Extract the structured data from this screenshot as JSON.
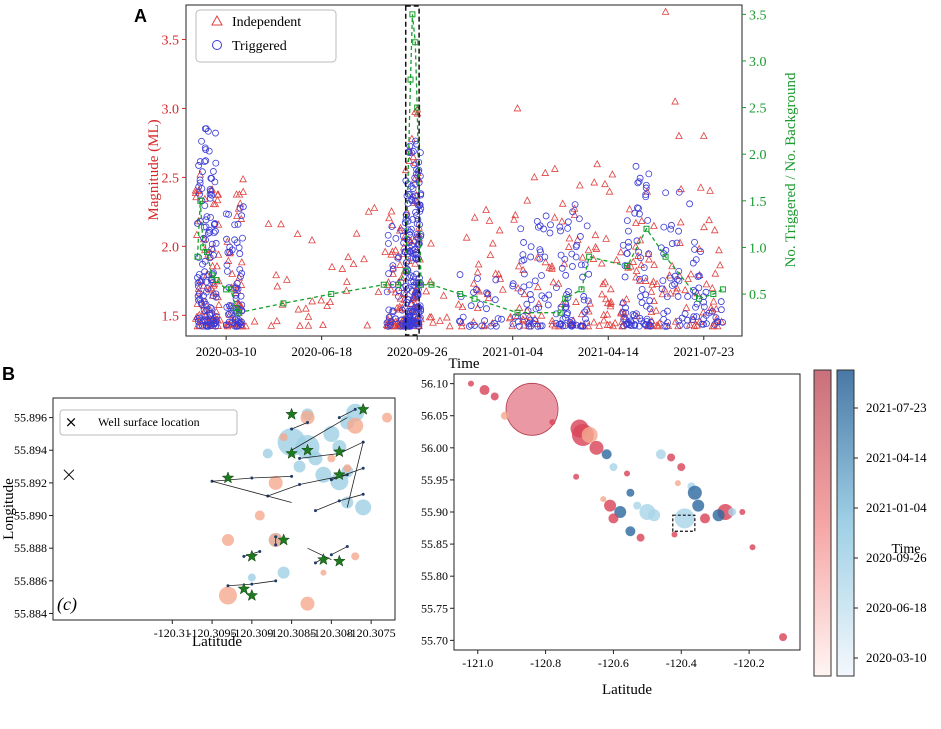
{
  "colors": {
    "independent": "#e0403f",
    "triggered": "#3b3bd6",
    "ratio": "#14a02a",
    "axis_left": "#d62728",
    "axis_right": "#1a9a2e",
    "late": "#2e6a9e",
    "mid": "#a8d4e6",
    "early": "#f2a58a",
    "red": "#d9455a"
  },
  "chart_data": [
    {
      "panel": "A",
      "type": "scatter",
      "xlabel": "Time",
      "ylabel": "Magnitude (ML)",
      "y2label": "No. Triggered / No. Background",
      "xticks": [
        "2020-03-10",
        "2020-06-18",
        "2020-09-26",
        "2021-01-04",
        "2021-04-14",
        "2021-07-23"
      ],
      "xlim": [
        -42,
        540
      ],
      "ylim": [
        1.35,
        3.75
      ],
      "yticks": [
        "1.5",
        "2.0",
        "2.5",
        "3.0",
        "3.5"
      ],
      "y2lim": [
        0.05,
        3.6
      ],
      "y2ticks": [
        "0.5",
        "1.0",
        "1.5",
        "2.0",
        "2.5",
        "3.0",
        "3.5"
      ],
      "legend": {
        "position": "top-left",
        "entries": [
          "Independent",
          "Triggered"
        ]
      },
      "highlight_window": [
        188,
        202
      ],
      "ratio_series": {
        "name": "No. Triggered / No. Background",
        "x": [
          -30,
          -27,
          -24,
          -20,
          -15,
          -10,
          0,
          5,
          10,
          13,
          60,
          110,
          165,
          180,
          188,
          193,
          195,
          198,
          200,
          204,
          215,
          245,
          260,
          305,
          350,
          355,
          372,
          380,
          420,
          440,
          460,
          495,
          510,
          520
        ],
        "y": [
          0.9,
          1.5,
          1.0,
          0.95,
          0.7,
          0.65,
          0.55,
          0.55,
          0.35,
          0.3,
          0.4,
          0.5,
          0.6,
          0.6,
          0.75,
          2.8,
          3.5,
          3.2,
          2.5,
          0.6,
          0.6,
          0.5,
          0.45,
          0.3,
          0.3,
          0.45,
          0.55,
          0.9,
          0.8,
          1.2,
          0.9,
          0.45,
          0.5,
          0.55
        ]
      },
      "independent_clusters": [
        {
          "x": [
            -32,
            -6
          ],
          "ymax": 2.6,
          "n": 70
        },
        {
          "x": [
            0,
            18
          ],
          "ymax": 2.5,
          "n": 40
        },
        {
          "x": [
            20,
            180
          ],
          "ymax": 2.3,
          "n": 40
        },
        {
          "x": [
            168,
            188
          ],
          "ymax": 2.3,
          "n": 50
        },
        {
          "x": [
            188,
            204
          ],
          "ymax": 3.1,
          "n": 60
        },
        {
          "x": [
            205,
            300
          ],
          "ymax": 2.3,
          "n": 40
        },
        {
          "x": [
            300,
            395
          ],
          "ymax": 2.6,
          "n": 70
        },
        {
          "x": [
            395,
            445
          ],
          "ymax": 2.6,
          "n": 50
        },
        {
          "x": [
            445,
            520
          ],
          "ymax": 2.5,
          "n": 60
        }
      ],
      "triggered_clusters": [
        {
          "x": [
            -30,
            -10
          ],
          "ymax": 2.9,
          "n": 120
        },
        {
          "x": [
            0,
            18
          ],
          "ymax": 2.3,
          "n": 60
        },
        {
          "x": [
            168,
            188
          ],
          "ymax": 2.2,
          "n": 40
        },
        {
          "x": [
            188,
            204
          ],
          "ymax": 2.8,
          "n": 170
        },
        {
          "x": [
            240,
            290
          ],
          "ymax": 1.85,
          "n": 25
        },
        {
          "x": [
            300,
            340
          ],
          "ymax": 2.3,
          "n": 50
        },
        {
          "x": [
            345,
            380
          ],
          "ymax": 2.35,
          "n": 60
        },
        {
          "x": [
            415,
            445
          ],
          "ymax": 2.6,
          "n": 70
        },
        {
          "x": [
            455,
            520
          ],
          "ymax": 2.4,
          "n": 70
        }
      ],
      "outliers_independent": [
        {
          "x": 460,
          "y": 3.7
        },
        {
          "x": 470,
          "y": 3.05
        },
        {
          "x": 305,
          "y": 3.0
        },
        {
          "x": 474,
          "y": 2.8
        },
        {
          "x": 500,
          "y": 2.8
        }
      ]
    },
    {
      "panel": "B-left",
      "type": "scatter",
      "xlabel": "Latitude",
      "ylabel": "Longitude",
      "xlim": [
        -120.3115,
        -120.3072
      ],
      "ylim": [
        55.8836,
        55.8972
      ],
      "xticks": [
        "-120.31",
        "-120.3095",
        "-120.309",
        "-120.3085",
        "-120.308",
        "-120.3075"
      ],
      "yticks": [
        "55.884",
        "55.886",
        "55.888",
        "55.890",
        "55.892",
        "55.894",
        "55.896"
      ],
      "legend": {
        "position": "top-left",
        "entries": [
          "Well surface location"
        ]
      },
      "panel_label": "(c)",
      "well_surface_location": {
        "x": -120.3113,
        "y": 55.8925
      },
      "wells": [
        [
          [
            -120.3095,
            55.8921
          ],
          [
            -120.309,
            55.8923
          ],
          [
            -120.3085,
            55.8924
          ]
        ],
        [
          [
            -120.308,
            55.8922
          ],
          [
            -120.3078,
            55.8925
          ]
        ],
        [
          [
            -120.3084,
            55.8935
          ],
          [
            -120.3079,
            55.8938
          ],
          [
            -120.3076,
            55.8945
          ]
        ],
        [
          [
            -120.3085,
            55.8953
          ],
          [
            -120.3083,
            55.8957
          ]
        ],
        [
          [
            -120.3079,
            55.896
          ],
          [
            -120.3077,
            55.8965
          ]
        ],
        [
          [
            -120.3088,
            55.8912
          ],
          [
            -120.3084,
            55.8919
          ],
          [
            -120.3079,
            55.8924
          ]
        ],
        [
          [
            -120.308,
            55.8922
          ],
          [
            -120.3076,
            55.8929
          ]
        ],
        [
          [
            -120.3082,
            55.8903
          ],
          [
            -120.3079,
            55.8909
          ],
          [
            -120.3076,
            55.8913
          ]
        ],
        [
          [
            -120.3087,
            55.8887
          ],
          [
            -120.3087,
            55.8882
          ]
        ],
        [
          [
            -120.3091,
            55.8875
          ],
          [
            -120.3089,
            55.8878
          ]
        ],
        [
          [
            -120.308,
            55.8876
          ],
          [
            -120.3078,
            55.8881
          ]
        ],
        [
          [
            -120.3093,
            55.8857
          ],
          [
            -120.309,
            55.8858
          ],
          [
            -120.3087,
            55.886
          ]
        ],
        [
          [
            -120.3082,
            55.8871
          ],
          [
            -120.3081,
            55.8874
          ]
        ]
      ],
      "stars": [
        [
          -120.3093,
          55.8923
        ],
        [
          -120.3085,
          55.8962
        ],
        [
          -120.3083,
          55.894
        ],
        [
          -120.3076,
          55.8965
        ],
        [
          -120.3079,
          55.8939
        ],
        [
          -120.3079,
          55.8925
        ],
        [
          -120.3086,
          55.8885
        ],
        [
          -120.309,
          55.8875
        ],
        [
          -120.3081,
          55.8873
        ],
        [
          -120.3079,
          55.8872
        ],
        [
          -120.3091,
          55.8855
        ],
        [
          -120.309,
          55.8851
        ],
        [
          -120.3085,
          55.8938
        ]
      ],
      "events": [
        {
          "x": -120.3085,
          "y": 55.8945,
          "r": 14,
          "c": "mid"
        },
        {
          "x": -120.3083,
          "y": 55.8942,
          "r": 12,
          "c": "mid"
        },
        {
          "x": -120.308,
          "y": 55.895,
          "r": 8,
          "c": "mid"
        },
        {
          "x": -120.3077,
          "y": 55.8963,
          "r": 9,
          "c": "mid"
        },
        {
          "x": -120.3083,
          "y": 55.8962,
          "r": 6,
          "c": "mid"
        },
        {
          "x": -120.3078,
          "y": 55.8957,
          "r": 7,
          "c": "mid"
        },
        {
          "x": -120.3081,
          "y": 55.8925,
          "r": 8,
          "c": "mid"
        },
        {
          "x": -120.3079,
          "y": 55.8921,
          "r": 9,
          "c": "mid"
        },
        {
          "x": -120.3078,
          "y": 55.8927,
          "r": 6,
          "c": "mid"
        },
        {
          "x": -120.3082,
          "y": 55.8935,
          "r": 7,
          "c": "mid"
        },
        {
          "x": -120.3076,
          "y": 55.8905,
          "r": 8,
          "c": "mid"
        },
        {
          "x": -120.3078,
          "y": 55.8908,
          "r": 6,
          "c": "mid"
        },
        {
          "x": -120.3087,
          "y": 55.8885,
          "r": 7,
          "c": "mid"
        },
        {
          "x": -120.3084,
          "y": 55.893,
          "r": 6,
          "c": "mid"
        },
        {
          "x": -120.3079,
          "y": 55.8942,
          "r": 7,
          "c": "mid"
        },
        {
          "x": -120.3088,
          "y": 55.8938,
          "r": 5,
          "c": "mid"
        },
        {
          "x": -120.3086,
          "y": 55.8865,
          "r": 6,
          "c": "mid"
        },
        {
          "x": -120.309,
          "y": 55.8862,
          "r": 4,
          "c": "mid"
        },
        {
          "x": -120.3087,
          "y": 55.892,
          "r": 7,
          "c": "early"
        },
        {
          "x": -120.3077,
          "y": 55.8955,
          "r": 8,
          "c": "early"
        },
        {
          "x": -120.3083,
          "y": 55.896,
          "r": 7,
          "c": "early"
        },
        {
          "x": -120.3073,
          "y": 55.896,
          "r": 5,
          "c": "early"
        },
        {
          "x": -120.3089,
          "y": 55.89,
          "r": 5,
          "c": "early"
        },
        {
          "x": -120.3093,
          "y": 55.8885,
          "r": 6,
          "c": "early"
        },
        {
          "x": -120.3093,
          "y": 55.8851,
          "r": 9,
          "c": "early"
        },
        {
          "x": -120.3083,
          "y": 55.8846,
          "r": 7,
          "c": "early"
        },
        {
          "x": -120.3087,
          "y": 55.8885,
          "r": 7,
          "c": "early"
        },
        {
          "x": -120.3081,
          "y": 55.8865,
          "r": 3,
          "c": "early"
        },
        {
          "x": -120.3078,
          "y": 55.8929,
          "r": 4,
          "c": "early"
        },
        {
          "x": -120.3077,
          "y": 55.8875,
          "r": 4,
          "c": "early"
        },
        {
          "x": -120.3086,
          "y": 55.8948,
          "r": 4,
          "c": "early"
        },
        {
          "x": -120.308,
          "y": 55.8935,
          "r": 4,
          "c": "early"
        }
      ]
    },
    {
      "panel": "B-right",
      "type": "scatter",
      "xlabel": "Latitude",
      "xlim": [
        -121.07,
        -120.05
      ],
      "ylim": [
        55.685,
        56.115
      ],
      "xticks": [
        "-121.0",
        "-120.8",
        "-120.6",
        "-120.4",
        "-120.2"
      ],
      "yticks": [
        "55.70",
        "55.75",
        "55.80",
        "55.85",
        "55.90",
        "55.95",
        "56.00",
        "56.05",
        "56.10"
      ],
      "colorbar_label": "Time",
      "colorbar_ticks": [
        "2021-07-23",
        "2021-04-14",
        "2021-01-04",
        "2020-09-26",
        "2020-06-18",
        "2020-03-10"
      ],
      "highlight_box": {
        "x": [
          -120.425,
          -120.36
        ],
        "y": [
          55.87,
          55.895
        ]
      },
      "events": [
        {
          "x": -120.84,
          "y": 56.06,
          "r": 26,
          "c": "red"
        },
        {
          "x": -120.7,
          "y": 56.03,
          "r": 9,
          "c": "red"
        },
        {
          "x": -120.69,
          "y": 56.02,
          "r": 11,
          "c": "red"
        },
        {
          "x": -120.67,
          "y": 56.02,
          "r": 8,
          "c": "early"
        },
        {
          "x": -120.65,
          "y": 56.0,
          "r": 7,
          "c": "red"
        },
        {
          "x": -120.98,
          "y": 56.09,
          "r": 5,
          "c": "red"
        },
        {
          "x": -120.95,
          "y": 56.08,
          "r": 4,
          "c": "red"
        },
        {
          "x": -121.02,
          "y": 56.1,
          "r": 3,
          "c": "red"
        },
        {
          "x": -120.92,
          "y": 56.05,
          "r": 4,
          "c": "early"
        },
        {
          "x": -120.78,
          "y": 56.04,
          "r": 3,
          "c": "red"
        },
        {
          "x": -120.62,
          "y": 55.99,
          "r": 5,
          "c": "late"
        },
        {
          "x": -120.6,
          "y": 55.97,
          "r": 4,
          "c": "mid"
        },
        {
          "x": -120.55,
          "y": 55.93,
          "r": 4,
          "c": "late"
        },
        {
          "x": -120.53,
          "y": 55.91,
          "r": 4,
          "c": "mid"
        },
        {
          "x": -120.61,
          "y": 55.91,
          "r": 6,
          "c": "red"
        },
        {
          "x": -120.58,
          "y": 55.9,
          "r": 6,
          "c": "late"
        },
        {
          "x": -120.6,
          "y": 55.89,
          "r": 5,
          "c": "red"
        },
        {
          "x": -120.5,
          "y": 55.9,
          "r": 8,
          "c": "mid"
        },
        {
          "x": -120.48,
          "y": 55.895,
          "r": 6,
          "c": "mid"
        },
        {
          "x": -120.46,
          "y": 55.99,
          "r": 5,
          "c": "mid"
        },
        {
          "x": -120.43,
          "y": 55.985,
          "r": 4,
          "c": "red"
        },
        {
          "x": -120.4,
          "y": 55.97,
          "r": 4,
          "c": "red"
        },
        {
          "x": -120.37,
          "y": 55.94,
          "r": 4,
          "c": "mid"
        },
        {
          "x": -120.36,
          "y": 55.93,
          "r": 7,
          "c": "late"
        },
        {
          "x": -120.35,
          "y": 55.91,
          "r": 6,
          "c": "late"
        },
        {
          "x": -120.39,
          "y": 55.89,
          "r": 10,
          "c": "mid"
        },
        {
          "x": -120.33,
          "y": 55.89,
          "r": 5,
          "c": "red"
        },
        {
          "x": -120.27,
          "y": 55.9,
          "r": 8,
          "c": "red"
        },
        {
          "x": -120.29,
          "y": 55.895,
          "r": 6,
          "c": "late"
        },
        {
          "x": -120.25,
          "y": 55.9,
          "r": 4,
          "c": "mid"
        },
        {
          "x": -120.22,
          "y": 55.9,
          "r": 3,
          "c": "red"
        },
        {
          "x": -120.55,
          "y": 55.87,
          "r": 5,
          "c": "late"
        },
        {
          "x": -120.52,
          "y": 55.86,
          "r": 4,
          "c": "red"
        },
        {
          "x": -120.42,
          "y": 55.865,
          "r": 3,
          "c": "red"
        },
        {
          "x": -120.19,
          "y": 55.845,
          "r": 3,
          "c": "red"
        },
        {
          "x": -120.1,
          "y": 55.705,
          "r": 4,
          "c": "red"
        },
        {
          "x": -120.71,
          "y": 55.955,
          "r": 3,
          "c": "red"
        },
        {
          "x": -120.56,
          "y": 55.96,
          "r": 3,
          "c": "red"
        },
        {
          "x": -120.63,
          "y": 55.92,
          "r": 3,
          "c": "early"
        },
        {
          "x": -120.41,
          "y": 55.945,
          "r": 3,
          "c": "early"
        }
      ]
    }
  ],
  "labels": {
    "panel_a": "A",
    "panel_b": "B"
  }
}
